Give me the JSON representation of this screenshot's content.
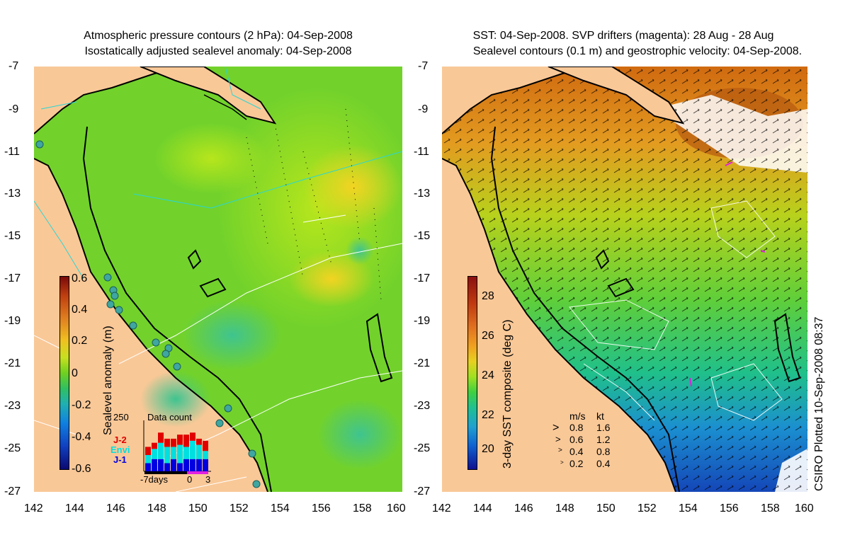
{
  "left_title": {
    "line1": "Atmospheric pressure contours (2 hPa): 04-Sep-2008",
    "line2": "Isostatically adjusted sealevel anomaly: 04-Sep-2008"
  },
  "right_title": {
    "line1": "SST: 04-Sep-2008. SVP drifters (magenta): 28 Aug - 28 Aug",
    "line2": "Sealevel contours (0.1 m) and geostrophic velocity: 04-Sep-2008."
  },
  "y_ticks": [
    "-7",
    "-9",
    "-11",
    "-13",
    "-15",
    "-17",
    "-19",
    "-21",
    "-23",
    "-25",
    "-27"
  ],
  "x_ticks": [
    "142",
    "144",
    "146",
    "148",
    "150",
    "152",
    "154",
    "156",
    "158",
    "160"
  ],
  "sla_colorbar": {
    "label": "Sealevel anomaly (m)",
    "ticks": [
      "0.6",
      "0.4",
      "0.2",
      "0",
      "-0.2",
      "-0.4",
      "-0.6"
    ]
  },
  "sst_colorbar": {
    "label": "3-day SST composite (deg C)",
    "ticks": [
      "28",
      "26",
      "24",
      "22",
      "20"
    ]
  },
  "data_count": {
    "title": "Data count",
    "max_label": "250",
    "series": [
      "J-2",
      "Envi",
      "J-1"
    ],
    "x_labels": [
      "-7days",
      "0",
      "3"
    ],
    "colors": {
      "J-2": "#e00000",
      "Envi": "#00e0e0",
      "J-1": "#0000e0"
    },
    "bars": [
      {
        "J-1": 40,
        "Envi": 40,
        "J-2": 40
      },
      {
        "J-1": 60,
        "Envi": 50,
        "J-2": 30
      },
      {
        "J-1": 60,
        "Envi": 80,
        "J-2": 50
      },
      {
        "J-1": 40,
        "Envi": 80,
        "J-2": 40
      },
      {
        "J-1": 60,
        "Envi": 60,
        "J-2": 40
      },
      {
        "J-1": 40,
        "Envi": 90,
        "J-2": 50
      },
      {
        "J-1": 60,
        "Envi": 60,
        "J-2": 60
      },
      {
        "J-1": 60,
        "Envi": 90,
        "J-2": 40
      },
      {
        "J-1": 60,
        "Envi": 70,
        "J-2": 30
      },
      {
        "J-1": 60,
        "Envi": 40,
        "J-2": 50
      }
    ]
  },
  "velocity_legend": {
    "header_ms": "m/s",
    "header_kt": "kt",
    "rows": [
      {
        "ms": "0.8",
        "kt": "1.6"
      },
      {
        "ms": "0.6",
        "kt": "1.2"
      },
      {
        "ms": "0.4",
        "kt": "0.8"
      },
      {
        "ms": "0.2",
        "kt": "0.4"
      }
    ]
  },
  "stamp": "CSIRO Plotted 10-Sep-2008 08:37",
  "colors": {
    "land": "#f9c897",
    "ocean_sla": "#6fd62a",
    "coast": "#000000"
  }
}
